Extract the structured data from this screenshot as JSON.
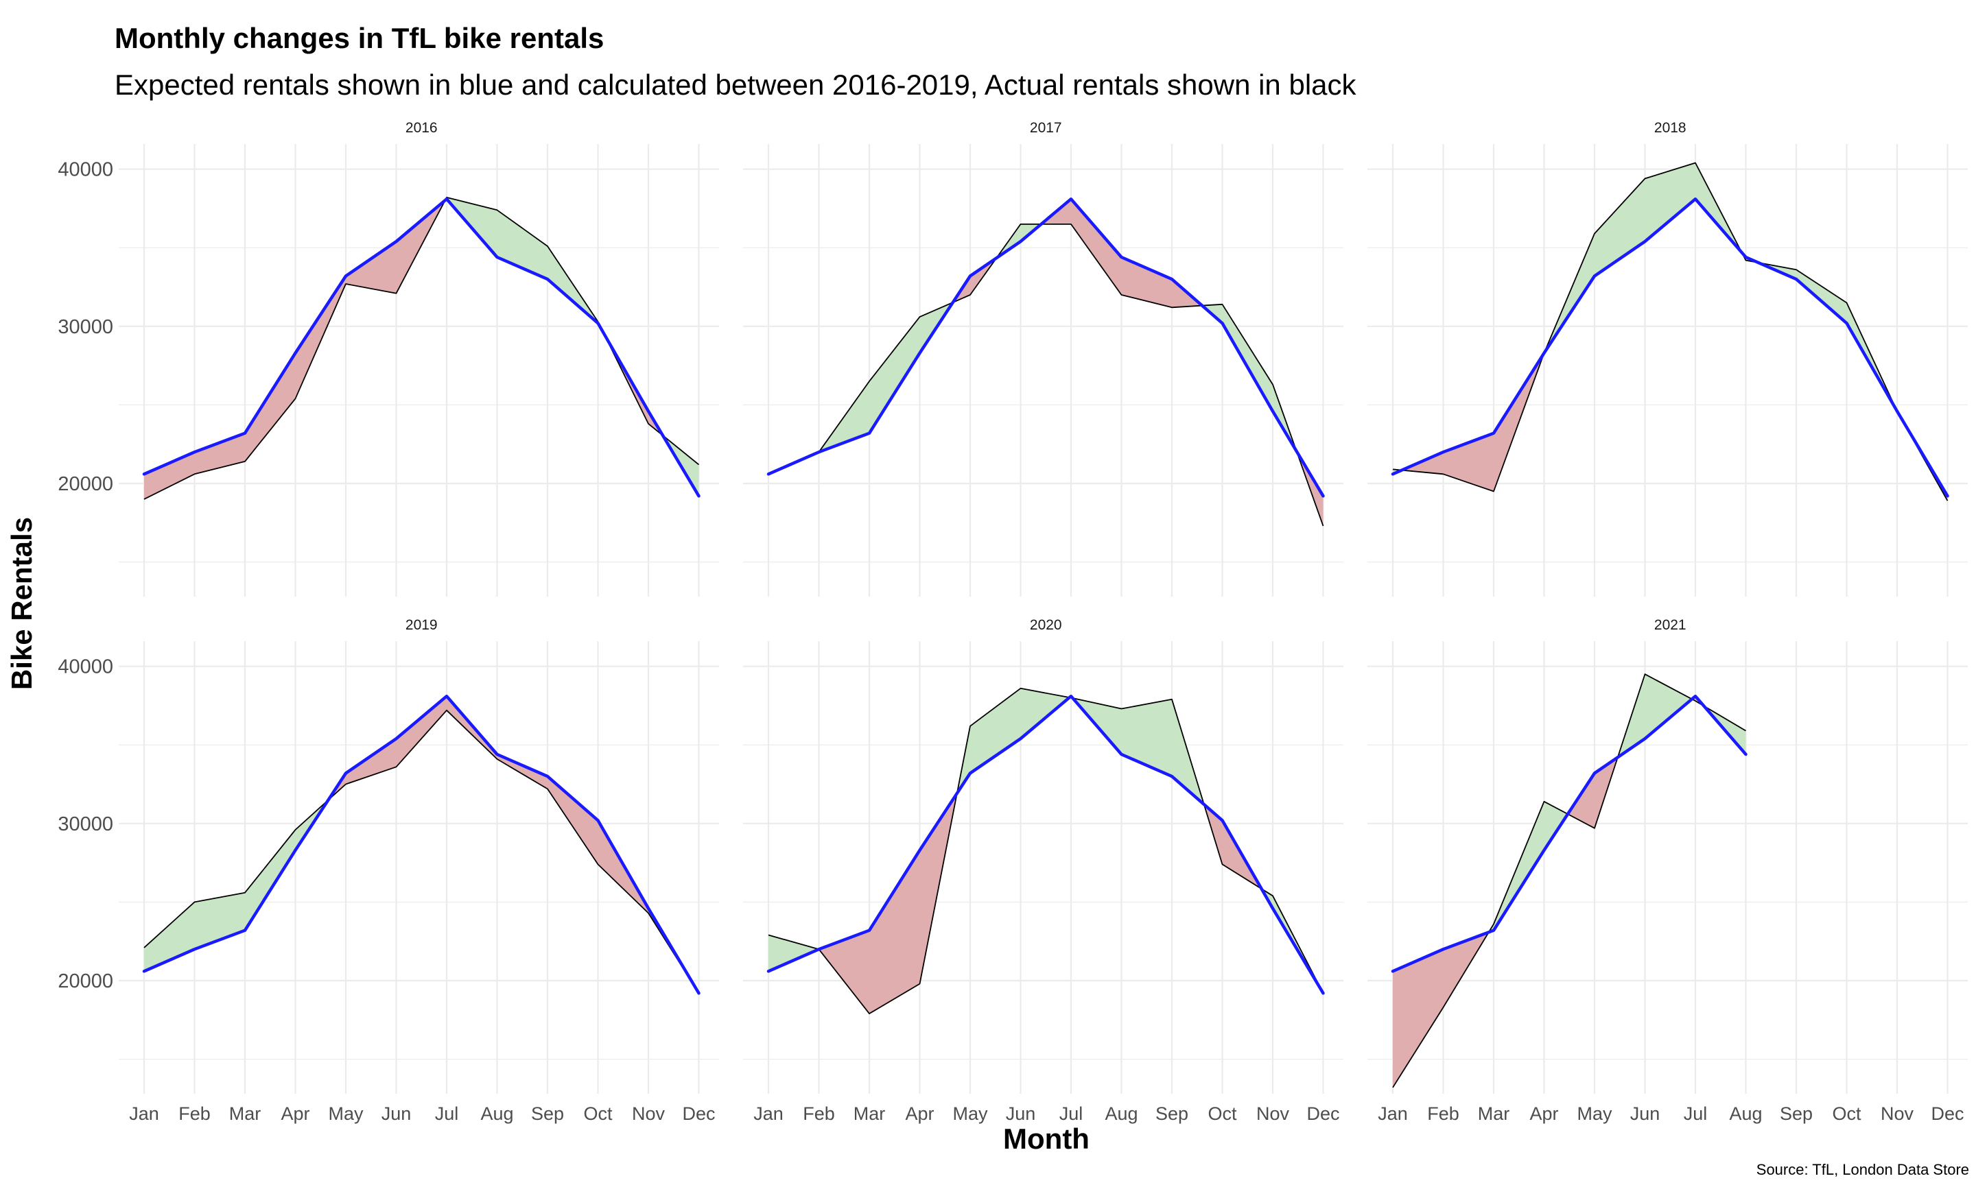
{
  "chart_data": {
    "type": "area",
    "title": "Monthly changes in TfL bike rentals",
    "subtitle": "Expected rentals shown in blue and calculated between 2016-2019, Actual rentals shown in black",
    "xlabel": "Month",
    "ylabel": "Bike Rentals",
    "caption": "Source: TfL, London Data Store",
    "categories": [
      "Jan",
      "Feb",
      "Mar",
      "Apr",
      "May",
      "Jun",
      "Jul",
      "Aug",
      "Sep",
      "Oct",
      "Nov",
      "Dec"
    ],
    "ylim": [
      12800,
      41600
    ],
    "yticks": [
      20000,
      30000,
      40000
    ],
    "ytick_labels": [
      "20000",
      "30000",
      "40000"
    ],
    "expected": [
      20600,
      22000,
      23200,
      28300,
      33200,
      35400,
      38100,
      34400,
      33000,
      30200,
      24600,
      19200
    ],
    "panels": [
      {
        "label": "2016",
        "actual": [
          19000,
          20600,
          21400,
          25400,
          32700,
          32100,
          38200,
          37400,
          35100,
          30300,
          23800,
          21200
        ]
      },
      {
        "label": "2017",
        "actual": [
          20600,
          22000,
          26500,
          30600,
          32000,
          36500,
          36500,
          32000,
          31200,
          31400,
          26300,
          17300
        ]
      },
      {
        "label": "2018",
        "actual": [
          20900,
          20600,
          19500,
          28300,
          35900,
          39400,
          40400,
          34200,
          33600,
          31500,
          24600,
          18900
        ]
      },
      {
        "label": "2019",
        "actual": [
          22100,
          25000,
          25600,
          29600,
          32500,
          33600,
          37200,
          34100,
          32200,
          27400,
          24300,
          19200
        ]
      },
      {
        "label": "2020",
        "actual": [
          22900,
          22000,
          17900,
          19800,
          36200,
          38600,
          38000,
          37300,
          37900,
          27400,
          25400,
          19200
        ]
      },
      {
        "label": "2021",
        "actual": [
          13200,
          18300,
          23600,
          31400,
          29700,
          39500,
          37800,
          35900
        ]
      }
    ],
    "colors": {
      "expected_line": "#1a1aff",
      "actual_line": "#000000",
      "above_fill": "#c8e6c6",
      "below_fill": "#e1aeb0",
      "grid": "#ebebeb"
    }
  }
}
